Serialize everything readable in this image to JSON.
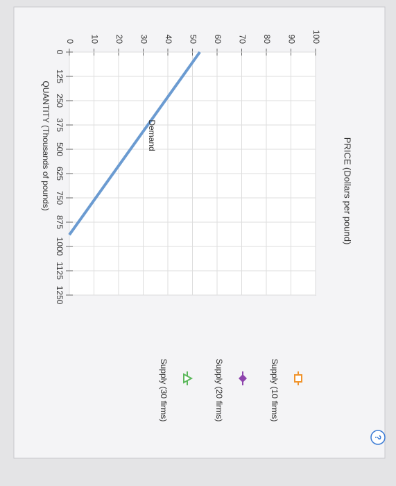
{
  "chart_data": {
    "type": "line",
    "title": "PRICE (Dollars per pound)",
    "x_label": "QUANTITY (Thousands of pounds)",
    "xlim": [
      0,
      1250
    ],
    "xticks": [
      0,
      125,
      250,
      375,
      500,
      625,
      750,
      875,
      1000,
      1125,
      1250
    ],
    "ylim": [
      0,
      100
    ],
    "yticks": [
      0,
      10,
      20,
      30,
      40,
      50,
      60,
      70,
      80,
      90,
      100
    ],
    "grid": true,
    "series": [
      {
        "name": "Demand",
        "color": "#6b9bd1",
        "x": [
          0,
          940
        ],
        "values": [
          53,
          0
        ]
      }
    ],
    "legend": [
      {
        "name": "Supply (10 firms)",
        "color": "#f0932b",
        "marker": "square"
      },
      {
        "name": "Supply (20 firms)",
        "color": "#8e44ad",
        "marker": "diamond"
      },
      {
        "name": "Supply (30 firms)",
        "color": "#5cb85c",
        "marker": "triangle"
      }
    ]
  }
}
